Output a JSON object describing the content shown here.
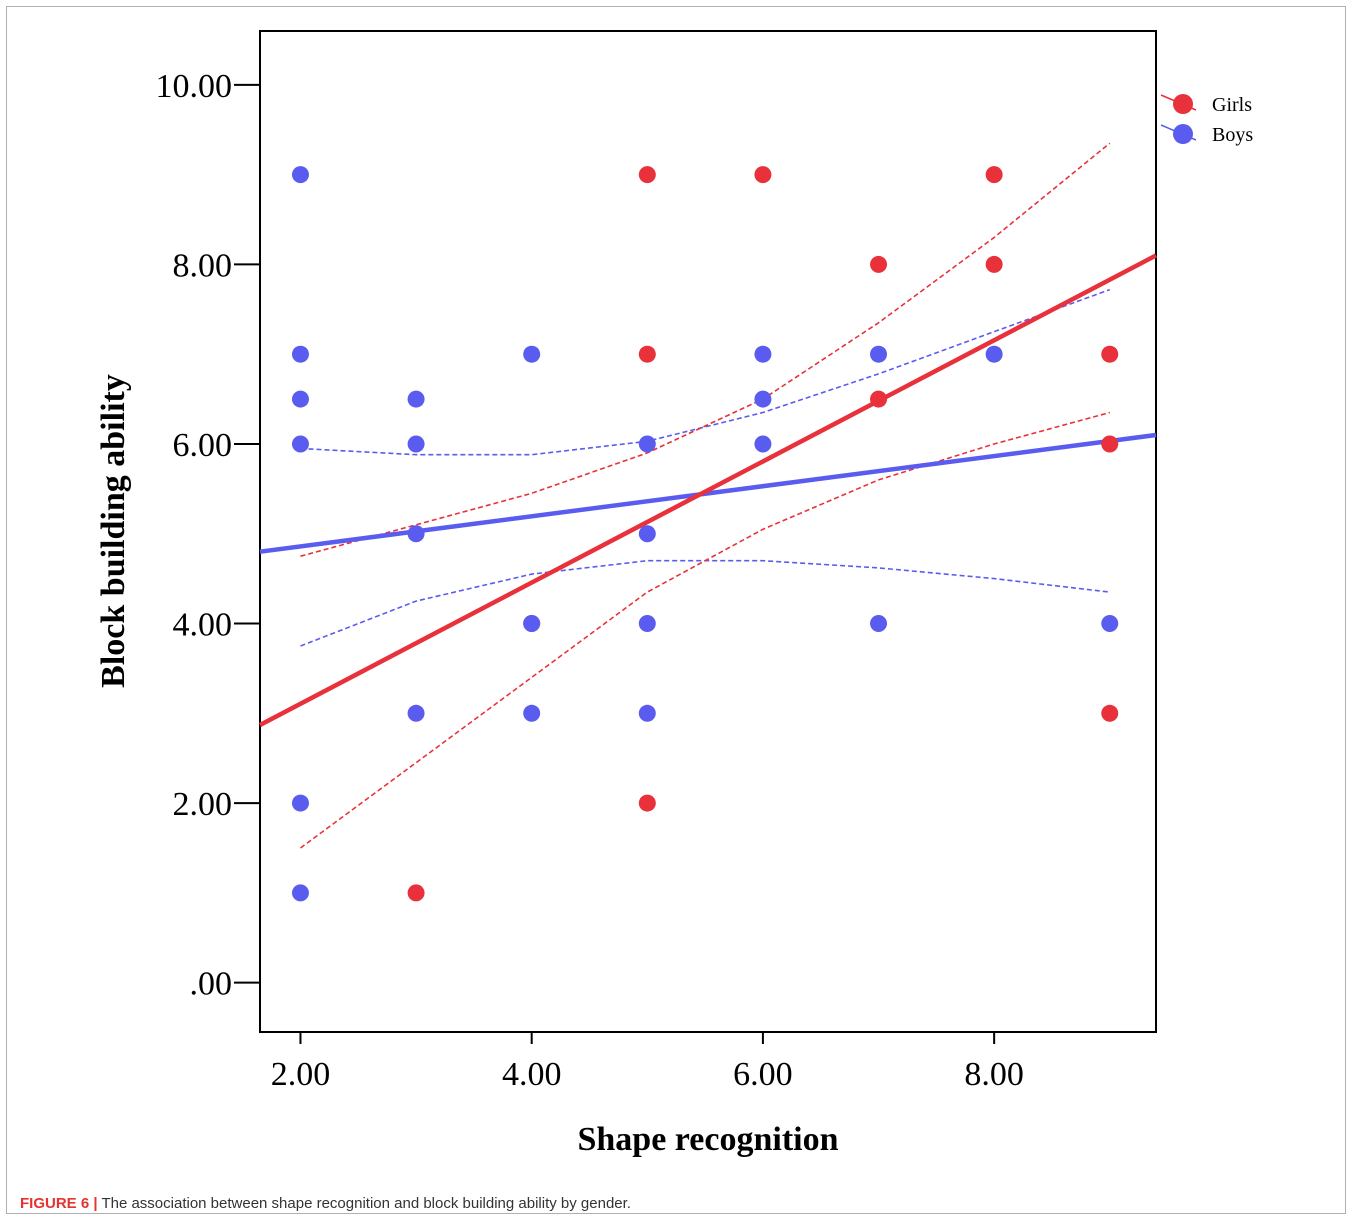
{
  "caption": {
    "label": "FIGURE 6 |",
    "text": " The association between shape recognition and block building ability by gender."
  },
  "colors": {
    "girls": "#e8313a",
    "boys": "#5a5cf0",
    "axis": "#000000"
  },
  "chart_data": {
    "type": "scatter",
    "title": "",
    "xlabel": "Shape recognition",
    "ylabel": "Block building ability",
    "xlim": [
      1.65,
      9.4
    ],
    "ylim": [
      -0.55,
      10.6
    ],
    "x_ticks": [
      2,
      4,
      6,
      8
    ],
    "x_tick_labels": [
      "2.00",
      "4.00",
      "6.00",
      "8.00"
    ],
    "y_ticks": [
      0,
      2,
      4,
      6,
      8,
      10
    ],
    "y_tick_labels": [
      ".00",
      "2.00",
      "4.00",
      "6.00",
      "8.00",
      "10.00"
    ],
    "grid": false,
    "legend_position": "top-right",
    "series": [
      {
        "name": "Girls",
        "color": "#e8313a",
        "points": [
          [
            3,
            1
          ],
          [
            4,
            4
          ],
          [
            5,
            2
          ],
          [
            5,
            7
          ],
          [
            5,
            9
          ],
          [
            6,
            9
          ],
          [
            7,
            6.5
          ],
          [
            7,
            8
          ],
          [
            8,
            8
          ],
          [
            8,
            9
          ],
          [
            9,
            3
          ],
          [
            9,
            6
          ],
          [
            9,
            7
          ]
        ],
        "fit_line": {
          "x": [
            1.65,
            9.4
          ],
          "y": [
            2.87,
            8.1
          ]
        },
        "ci_upper": {
          "x": [
            2,
            3,
            4,
            5,
            6,
            7,
            8,
            9
          ],
          "y": [
            4.75,
            5.1,
            5.45,
            5.9,
            6.5,
            7.35,
            8.3,
            9.35
          ]
        },
        "ci_lower": {
          "x": [
            2,
            3,
            4,
            5,
            6,
            7,
            8,
            9
          ],
          "y": [
            1.5,
            2.45,
            3.4,
            4.35,
            5.05,
            5.6,
            6.0,
            6.35
          ]
        }
      },
      {
        "name": "Boys",
        "color": "#5a5cf0",
        "points": [
          [
            2,
            1
          ],
          [
            2,
            2
          ],
          [
            2,
            6
          ],
          [
            2,
            6.5
          ],
          [
            2,
            7
          ],
          [
            2,
            9
          ],
          [
            3,
            3
          ],
          [
            3,
            5
          ],
          [
            3,
            6
          ],
          [
            3,
            6.5
          ],
          [
            4,
            3
          ],
          [
            4,
            4
          ],
          [
            4,
            7
          ],
          [
            5,
            3
          ],
          [
            5,
            4
          ],
          [
            5,
            5
          ],
          [
            5,
            6
          ],
          [
            6,
            6
          ],
          [
            6,
            6.5
          ],
          [
            6,
            7
          ],
          [
            7,
            4
          ],
          [
            7,
            7
          ],
          [
            8,
            7
          ],
          [
            9,
            4
          ]
        ],
        "fit_line": {
          "x": [
            1.65,
            9.4
          ],
          "y": [
            4.8,
            6.1
          ]
        },
        "ci_upper": {
          "x": [
            2,
            3,
            4,
            5,
            6,
            7,
            8,
            9
          ],
          "y": [
            5.95,
            5.88,
            5.88,
            6.03,
            6.35,
            6.78,
            7.25,
            7.72
          ]
        },
        "ci_lower": {
          "x": [
            2,
            3,
            4,
            5,
            6,
            7,
            8,
            9
          ],
          "y": [
            3.75,
            4.25,
            4.55,
            4.7,
            4.7,
            4.62,
            4.5,
            4.35
          ]
        }
      }
    ]
  }
}
